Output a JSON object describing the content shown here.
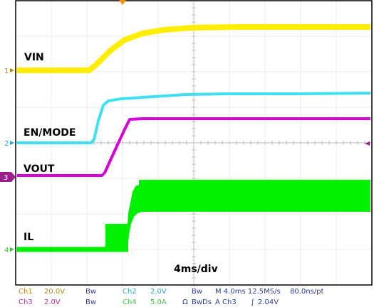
{
  "channels": [
    {
      "id": "ch1",
      "label": "VIN",
      "marker": "1",
      "color": "#ffee00"
    },
    {
      "id": "ch2",
      "label": "EN/MODE",
      "marker": "2",
      "color": "#3fe0f2"
    },
    {
      "id": "ch3",
      "label": "VOUT",
      "marker": "3",
      "color": "#d800d8"
    },
    {
      "id": "ch4",
      "label": "IL",
      "marker": "4",
      "color": "#00f000"
    }
  ],
  "timebase_label": "4ms/div",
  "colors": {
    "grid": "#ececec",
    "frame": "#000000",
    "trigger_marker": "#ff8c00",
    "ch3_marker_bg": "#9a1e8c",
    "ch4_marker": "#3cc43c",
    "status_text": "#2f3f8f"
  },
  "status": {
    "row1": {
      "ch1": "Ch1",
      "ch1_scale": "20.0V",
      "ch1_bw": "Bw",
      "ch2": "Ch2",
      "ch2_scale": "2.0V",
      "ch2_bw": "Bw",
      "horiz": "M 4.0ms 12.5MS/s",
      "resolution": "80.0ns/pt"
    },
    "row2": {
      "ch3": "Ch3",
      "ch3_scale": "2.0V",
      "ch3_bw": "Bw",
      "ch4": "Ch4",
      "ch4_scale": "5.0A",
      "ch4_coupling": "Ω",
      "ch4_bw": "BwDs",
      "trigger": "A Ch3",
      "trigger_slope": "∫",
      "trigger_level": "2.04V"
    }
  }
}
